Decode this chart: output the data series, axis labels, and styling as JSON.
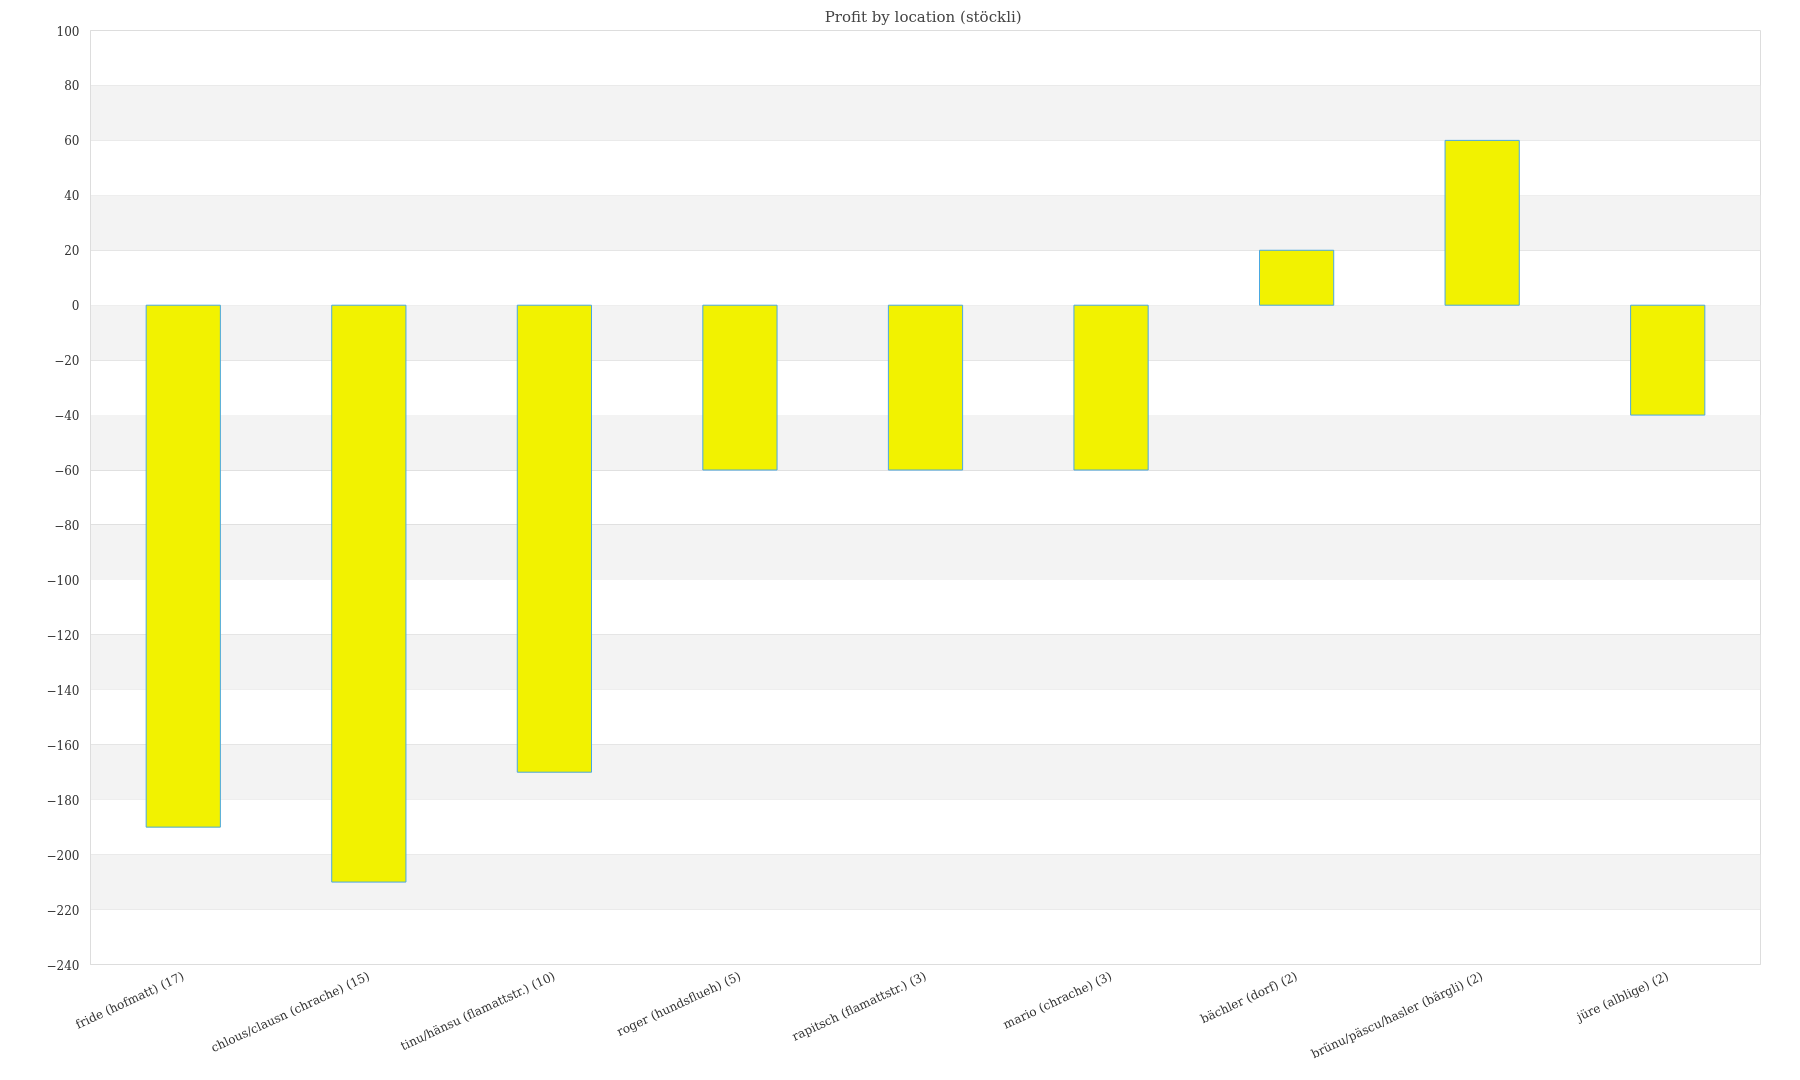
{
  "chart_data": {
    "type": "bar",
    "title": "Profit by location  (stöckli)",
    "categories": [
      "fride (hofmatt) (17)",
      "chlous/clausn (chrache) (15)",
      "tinu/hänsu (flamattstr.) (10)",
      "roger (hundsflueh) (5)",
      "rapitsch (flamattstr.) (3)",
      "mario (chrache) (3)",
      "bächler (dorf) (2)",
      "brünu/päscu/hasler (bärgli) (2)",
      "jüre (alblige) (2)"
    ],
    "values": [
      -190,
      -210,
      -170,
      -60,
      -60,
      -60,
      20,
      60,
      -40
    ],
    "color": "#f2f200",
    "ylim": [
      -240,
      100
    ],
    "yticks": [
      -240,
      -220,
      -200,
      -180,
      -160,
      -140,
      -120,
      -100,
      -80,
      -60,
      -40,
      -20,
      0,
      20,
      40,
      60,
      80,
      100
    ],
    "grid": "y"
  }
}
